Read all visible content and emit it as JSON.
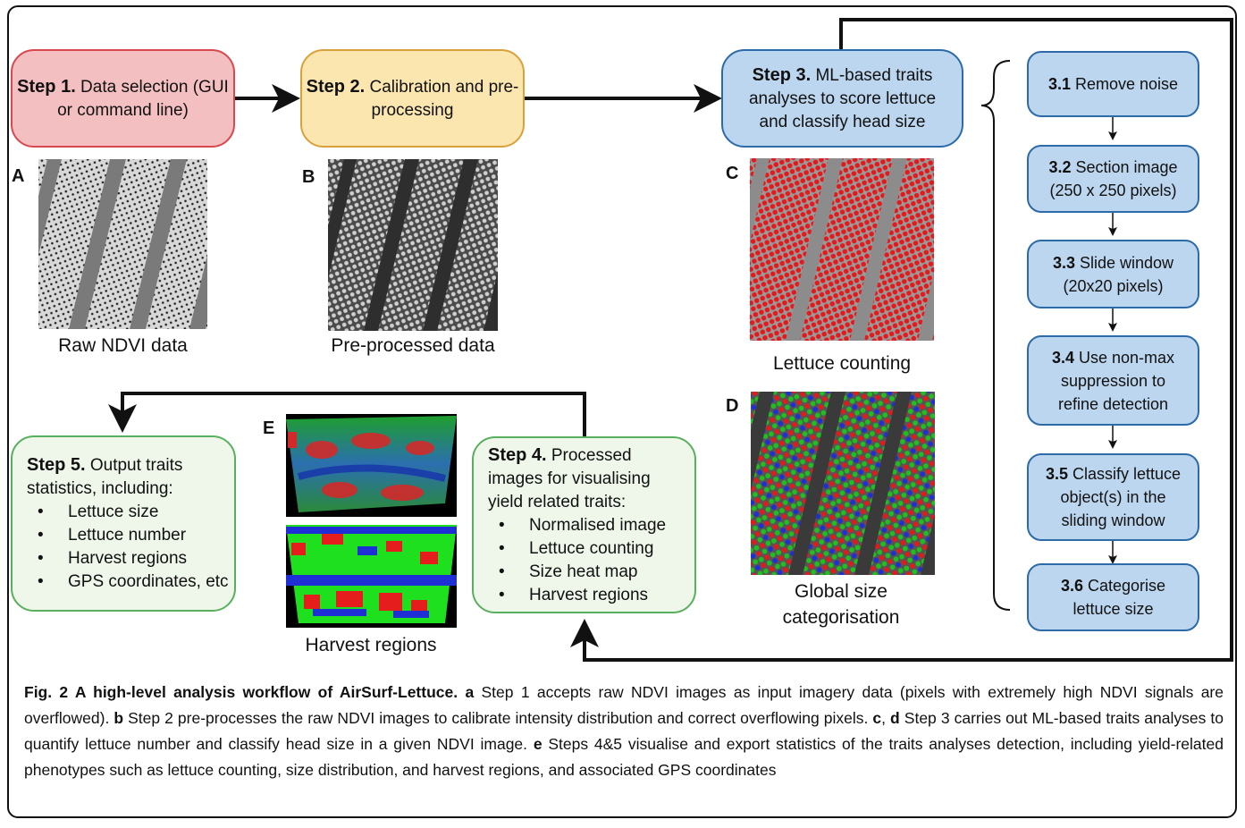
{
  "steps": {
    "step1": {
      "label": "Step 1.",
      "text": "Data selection (GUI or command line)"
    },
    "step2": {
      "label": "Step 2.",
      "text": "Calibration and pre-processing"
    },
    "step3": {
      "label": "Step 3.",
      "text": "ML-based traits analyses to score lettuce and classify head size"
    },
    "step4": {
      "label": "Step 4.",
      "text": "Processed images for visualising yield related traits:",
      "items": [
        "Normalised image",
        "Lettuce counting",
        "Size heat map",
        "Harvest regions"
      ]
    },
    "step5": {
      "label": "Step 5.",
      "text": "Output traits statistics, including:",
      "items": [
        "Lettuce size",
        "Lettuce number",
        "Harvest regions",
        "GPS coordinates, etc"
      ]
    }
  },
  "substeps": [
    {
      "num": "3.1",
      "text": "Remove noise"
    },
    {
      "num": "3.2",
      "text": "Section image (250 x 250 pixels)"
    },
    {
      "num": "3.3",
      "text": "Slide window (20x20 pixels)"
    },
    {
      "num": "3.4",
      "text": "Use non-max suppression to refine detection"
    },
    {
      "num": "3.5",
      "text": "Classify lettuce object(s) in the sliding window"
    },
    {
      "num": "3.6",
      "text": "Categorise lettuce size"
    }
  ],
  "panels": {
    "A": {
      "letter": "A",
      "caption": "Raw NDVI data"
    },
    "B": {
      "letter": "B",
      "caption": "Pre-processed data"
    },
    "C": {
      "letter": "C",
      "caption": "Lettuce counting"
    },
    "D": {
      "letter": "D",
      "caption": "Global size categorisation"
    },
    "E": {
      "letter": "E",
      "caption": "Harvest regions"
    }
  },
  "figure_caption": {
    "title": "Fig. 2 A high-level analysis workflow of AirSurf-Lettuce.",
    "a_label": "a",
    "a_text": "Step 1 accepts raw NDVI images as input imagery data (pixels with extremely high NDVI signals are overflowed).",
    "b_label": "b",
    "b_text": "Step 2 pre-processes the raw NDVI images to calibrate intensity distribution and correct overflowing pixels.",
    "cd_label_c": "c",
    "cd_sep": ", ",
    "cd_label_d": "d",
    "cd_text": "Step 3 carries out ML-based traits analyses to quantify lettuce number and classify head size in a given NDVI image.",
    "e_label": "e",
    "e_text": "Steps 4&5 visualise and export statistics of the traits analyses detection, including yield-related phenotypes such as lettuce counting, size distribution, and harvest regions, and associated GPS coordinates"
  },
  "colors": {
    "step1": "#f4bfc0",
    "step2": "#fbe6b0",
    "step3": "#bcd6ef",
    "step45": "#eef7ea",
    "red_marker": "#e31a1c",
    "green_marker": "#1fbf1f",
    "blue_marker": "#1f2fd6"
  }
}
